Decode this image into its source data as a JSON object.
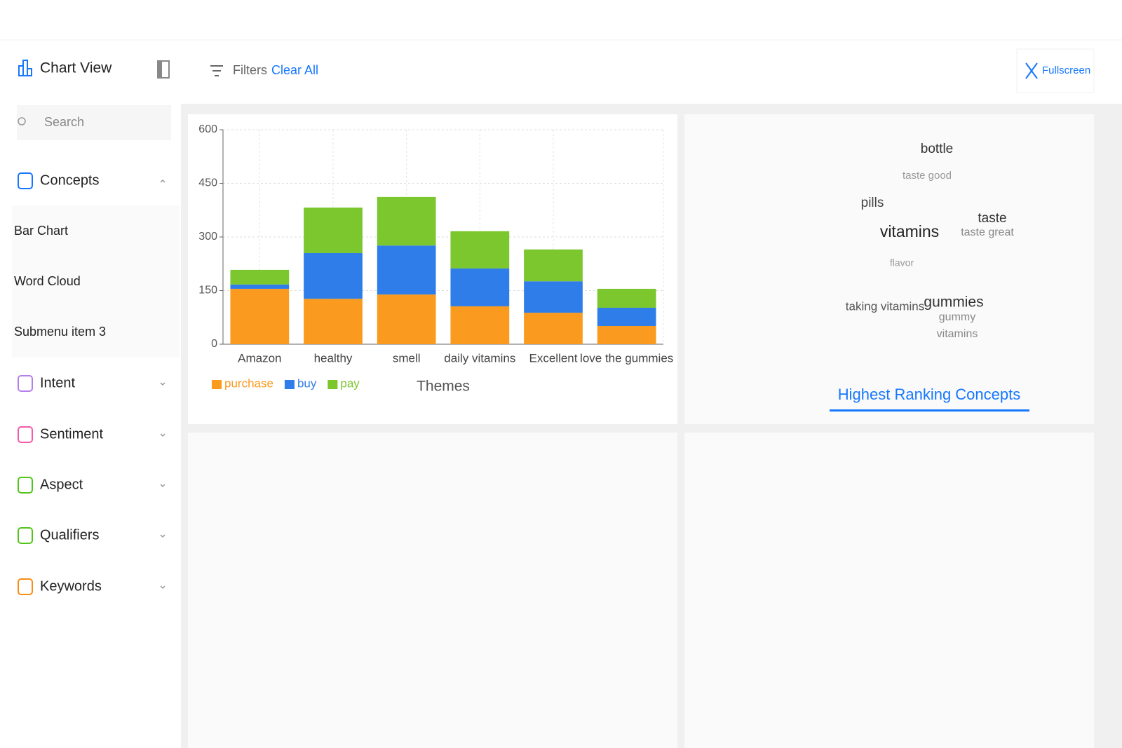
{
  "sidebar": {
    "title": "Chart View",
    "search": "Search",
    "menu": [
      {
        "label": "Concepts",
        "submenu": [
          "Bar Chart",
          "Word Cloud",
          "Submenu item 3"
        ]
      },
      {
        "label": "Intent"
      },
      {
        "label": "Sentiment"
      },
      {
        "label": "Aspect"
      },
      {
        "label": "Qualifiers"
      },
      {
        "label": "Keywords"
      }
    ]
  },
  "toolbar": {
    "filters": "Filters",
    "clear": "Clear All",
    "fullscreen": "Fullscreen"
  },
  "chart_data": {
    "type": "bar",
    "stacked": true,
    "xlabel": "Themes",
    "categories": [
      "Amazon",
      "healthy",
      "smell",
      "daily vitamins",
      "Excellent",
      "love the gummies"
    ],
    "series": [
      {
        "name": "purchase",
        "color": "#fa9a1e",
        "values": [
          155,
          127,
          139,
          106,
          88,
          51
        ]
      },
      {
        "name": "buy",
        "color": "#2f7de8",
        "values": [
          12,
          128,
          137,
          106,
          88,
          51
        ]
      },
      {
        "name": "pay",
        "color": "#7cc62e",
        "values": [
          41,
          127,
          136,
          104,
          89,
          53
        ]
      }
    ],
    "ylim": [
      0,
      600
    ],
    "yticks": [
      0,
      150,
      300,
      450,
      600
    ],
    "grid": true,
    "legend": "bottom-left"
  },
  "word_cloud": {
    "tab": "Highest Ranking Concepts",
    "words": [
      "bottle",
      "taste good",
      "pills",
      "taste",
      "vitamins",
      "taste great",
      "flavor",
      "taking vitamins",
      "gummies",
      "gummy",
      "vitamins"
    ]
  }
}
